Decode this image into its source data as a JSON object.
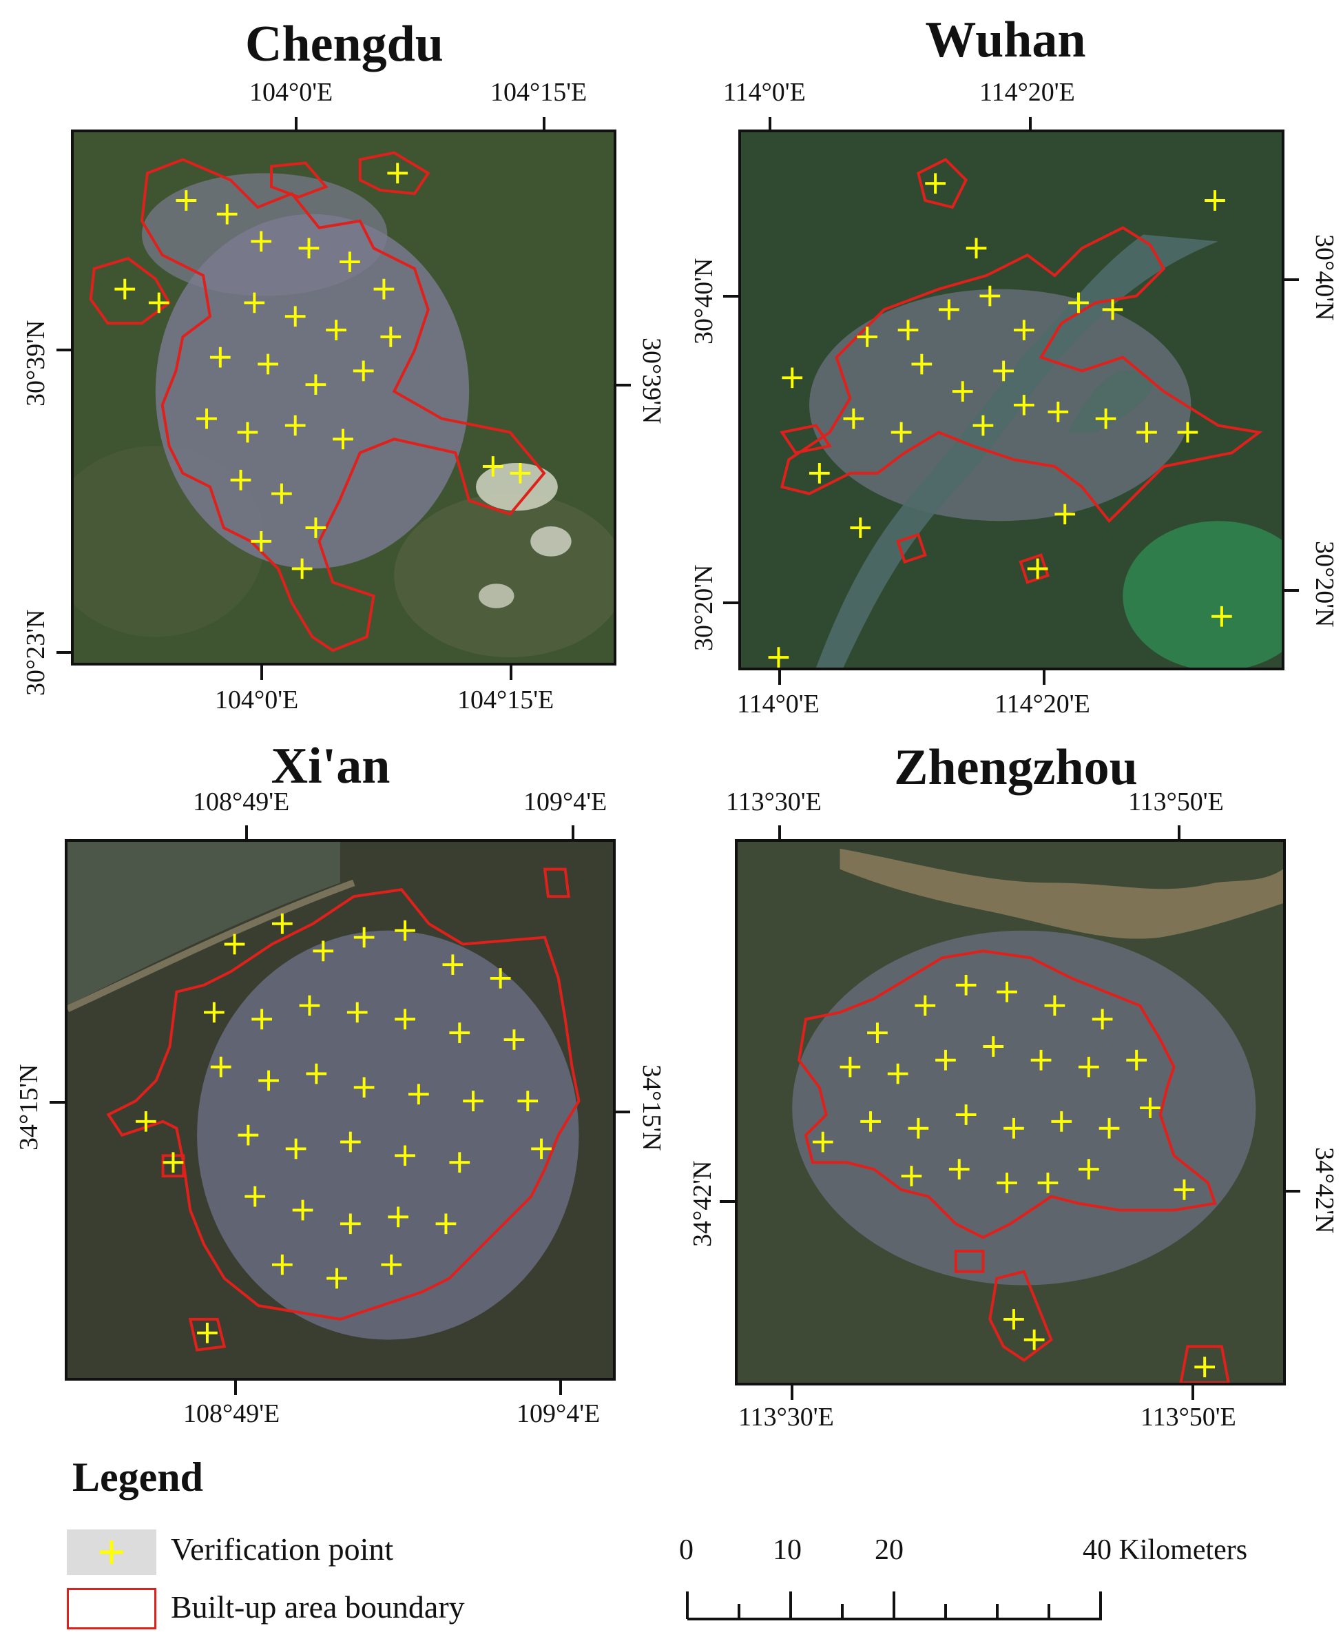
{
  "maps": [
    {
      "id": "chengdu",
      "title": "Chengdu",
      "top_ticks": [
        "104°0'E",
        "104°15'E"
      ],
      "bottom_ticks": [
        "104°0'E",
        "104°15'E"
      ],
      "left_ticks": [
        "30°39'N",
        "30°23'N"
      ],
      "right_ticks": [
        "30°39'N"
      ]
    },
    {
      "id": "wuhan",
      "title": "Wuhan",
      "top_ticks": [
        "114°0'E",
        "114°20'E"
      ],
      "bottom_ticks": [
        "114°0'E",
        "114°20'E"
      ],
      "left_ticks": [
        "30°40'N",
        "30°20'N"
      ],
      "right_ticks": [
        "30°40'N",
        "30°20'N"
      ]
    },
    {
      "id": "xian",
      "title": "Xi'an",
      "top_ticks": [
        "108°49'E",
        "109°4'E"
      ],
      "bottom_ticks": [
        "108°49'E",
        "109°4'E"
      ],
      "left_ticks": [
        "34°15'N"
      ],
      "right_ticks": [
        "34°15'N"
      ]
    },
    {
      "id": "zhengzhou",
      "title": "Zhengzhou",
      "top_ticks": [
        "113°30'E",
        "113°50'E"
      ],
      "bottom_ticks": [
        "113°30'E",
        "113°50'E"
      ],
      "left_ticks": [
        "34°42'N"
      ],
      "right_ticks": [
        "34°42'N"
      ]
    }
  ],
  "legend": {
    "title": "Legend",
    "items": [
      {
        "label": "Verification point",
        "symbol": "yellow-cross",
        "color": "#ffff00"
      },
      {
        "label": "Built-up area boundary",
        "symbol": "red-outline",
        "color": "#e0201b"
      }
    ]
  },
  "scale_bar": {
    "labels": [
      "0",
      "10",
      "20",
      "40 Kilometers"
    ]
  },
  "colors": {
    "boundary": "#e0201b",
    "point": "#ffff00",
    "vegetation": "#3e5231",
    "urban": "#7d7f96"
  }
}
